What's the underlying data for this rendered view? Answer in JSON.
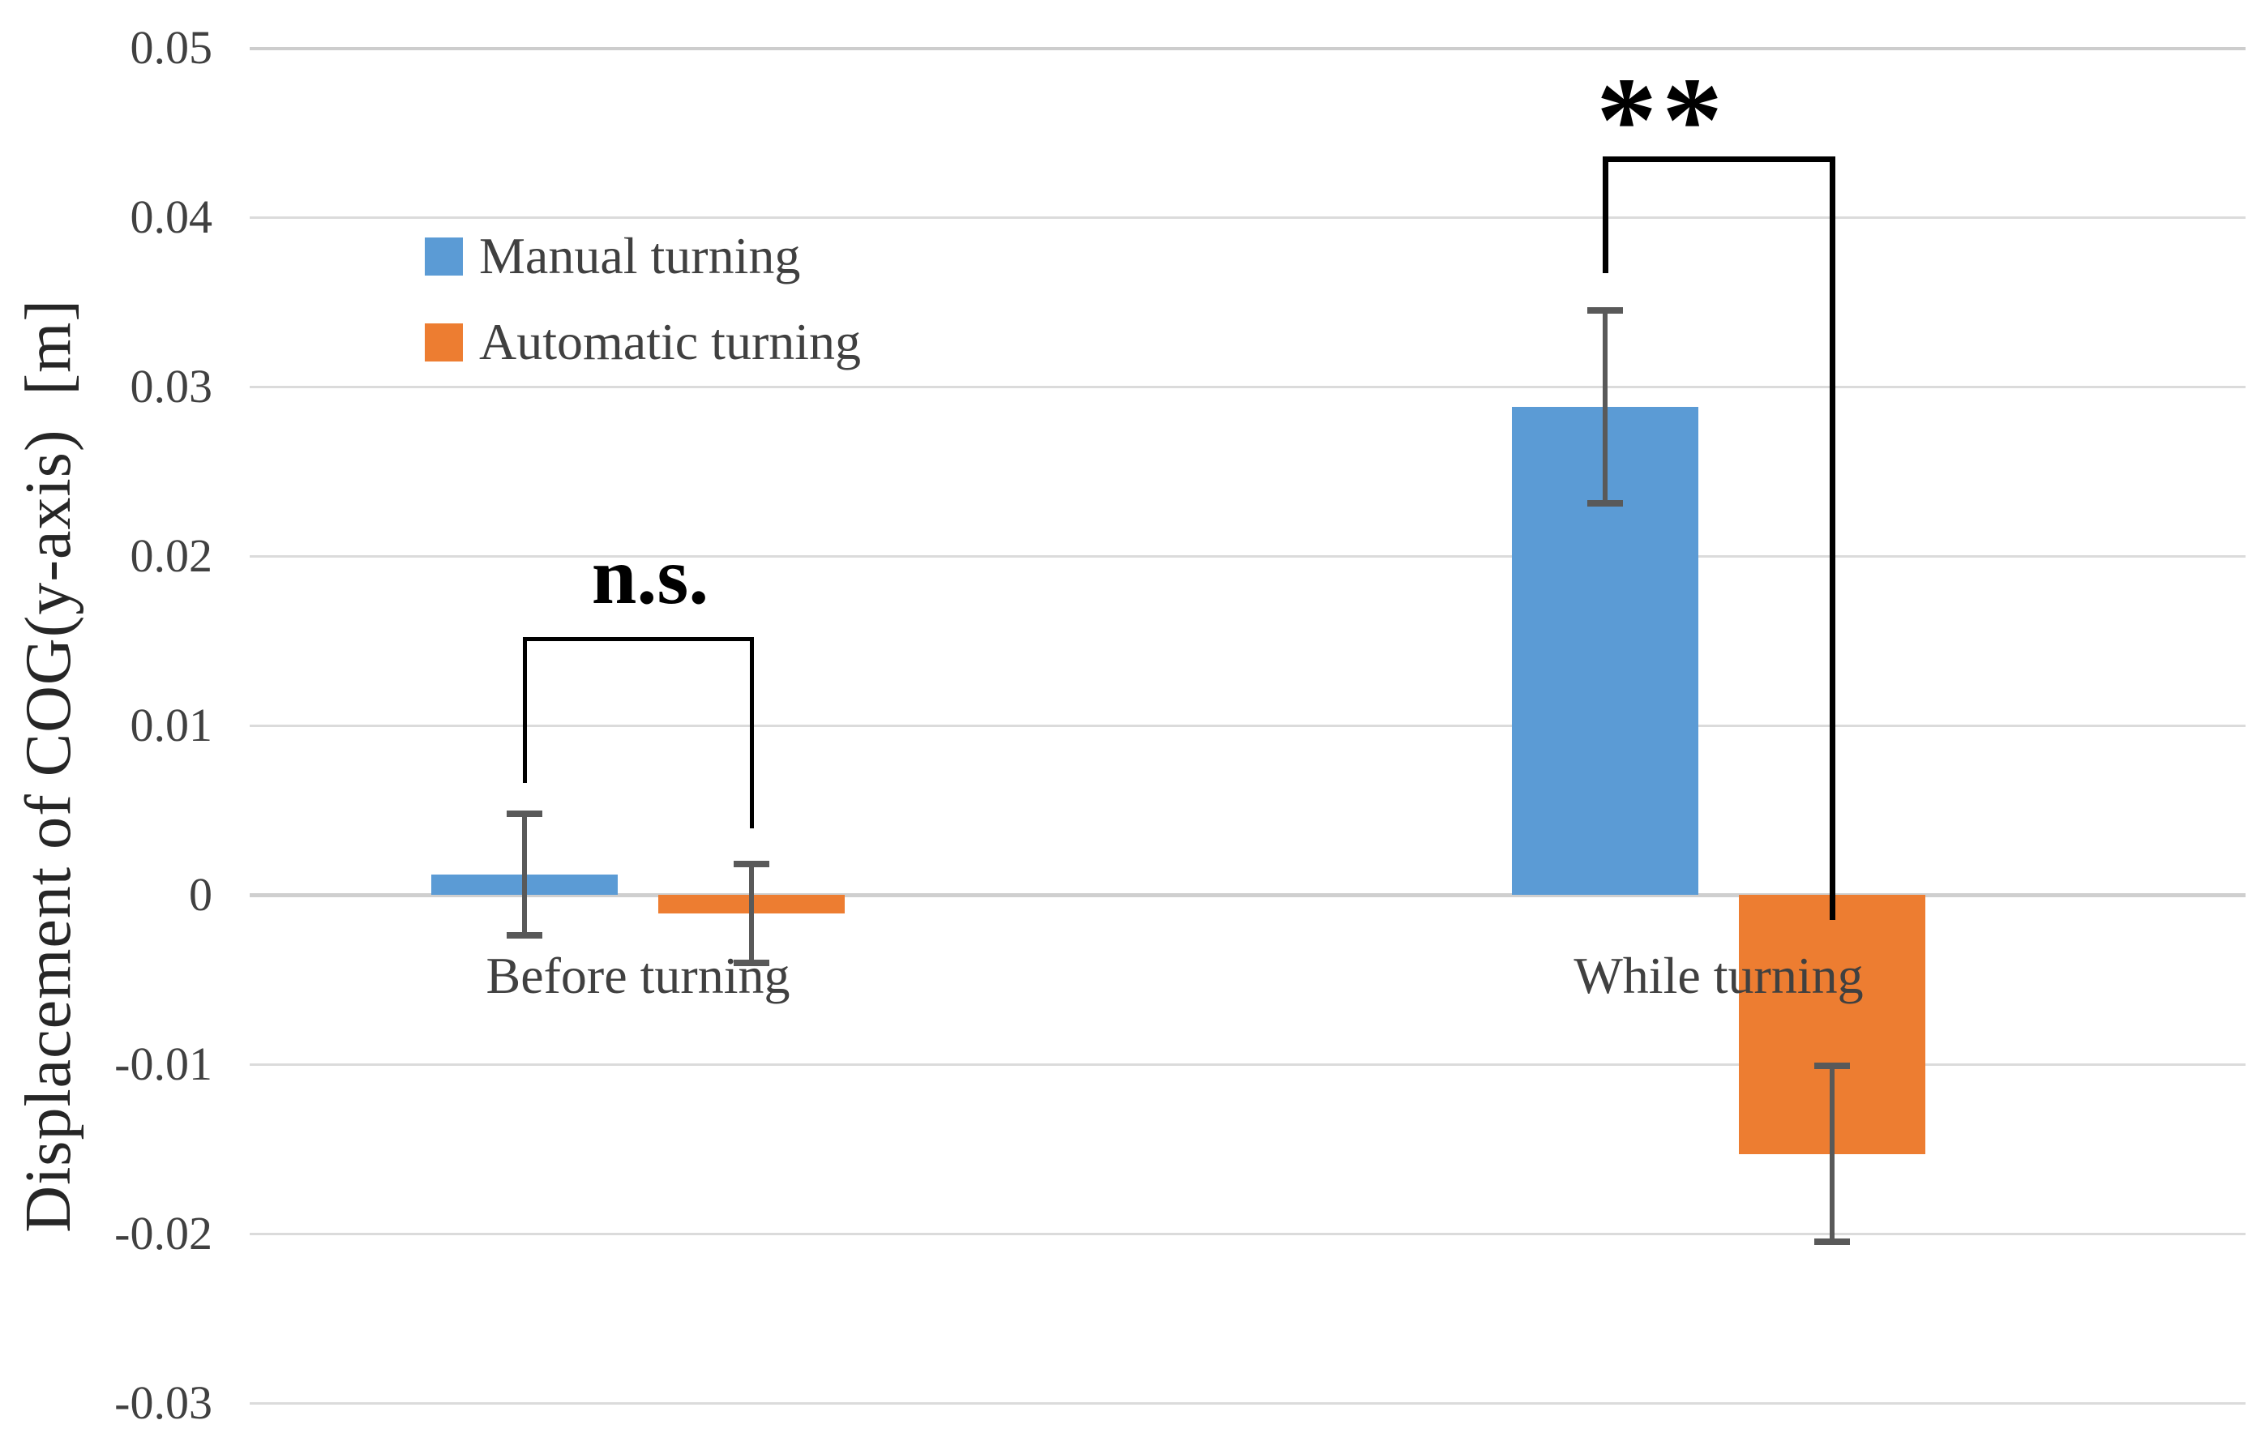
{
  "chart_data": {
    "type": "bar",
    "title": "",
    "ylabel": "Displacement of COG(y-axis)  [m]",
    "xlabel": "",
    "categories": [
      "Before turning",
      "While turning"
    ],
    "series": [
      {
        "name": "Manual turning",
        "color": "#5B9BD5",
        "values": [
          0.0012,
          0.0288
        ],
        "errors": [
          0.0036,
          0.0057
        ]
      },
      {
        "name": "Automatic turning",
        "color": "#ED7D31",
        "values": [
          -0.0011,
          -0.0153
        ],
        "errors": [
          0.0029,
          0.0052
        ]
      }
    ],
    "ylim": [
      -0.03,
      0.05
    ],
    "ytick_step": 0.01,
    "yticks": [
      "0.05",
      "0.04",
      "0.03",
      "0.02",
      "0.01",
      "0",
      "-0.01",
      "-0.02",
      "-0.03"
    ],
    "grid": true,
    "legend_position": "inside-top-left",
    "annotations": [
      {
        "label": "n.s.",
        "category": "Before turning",
        "y": 0.0152,
        "drop_left_to": 0.0066,
        "drop_right_to": 0.0039
      },
      {
        "label": "**",
        "category": "While turning",
        "y": 0.0436,
        "drop_left_to": 0.0367,
        "drop_right_to": -0.0015
      }
    ],
    "colors": {
      "error_bar": "#595959",
      "gridline": "#DBDBDB",
      "zero_line": "#CFCFCF",
      "annotation": "#000000",
      "text": "#404040"
    }
  }
}
